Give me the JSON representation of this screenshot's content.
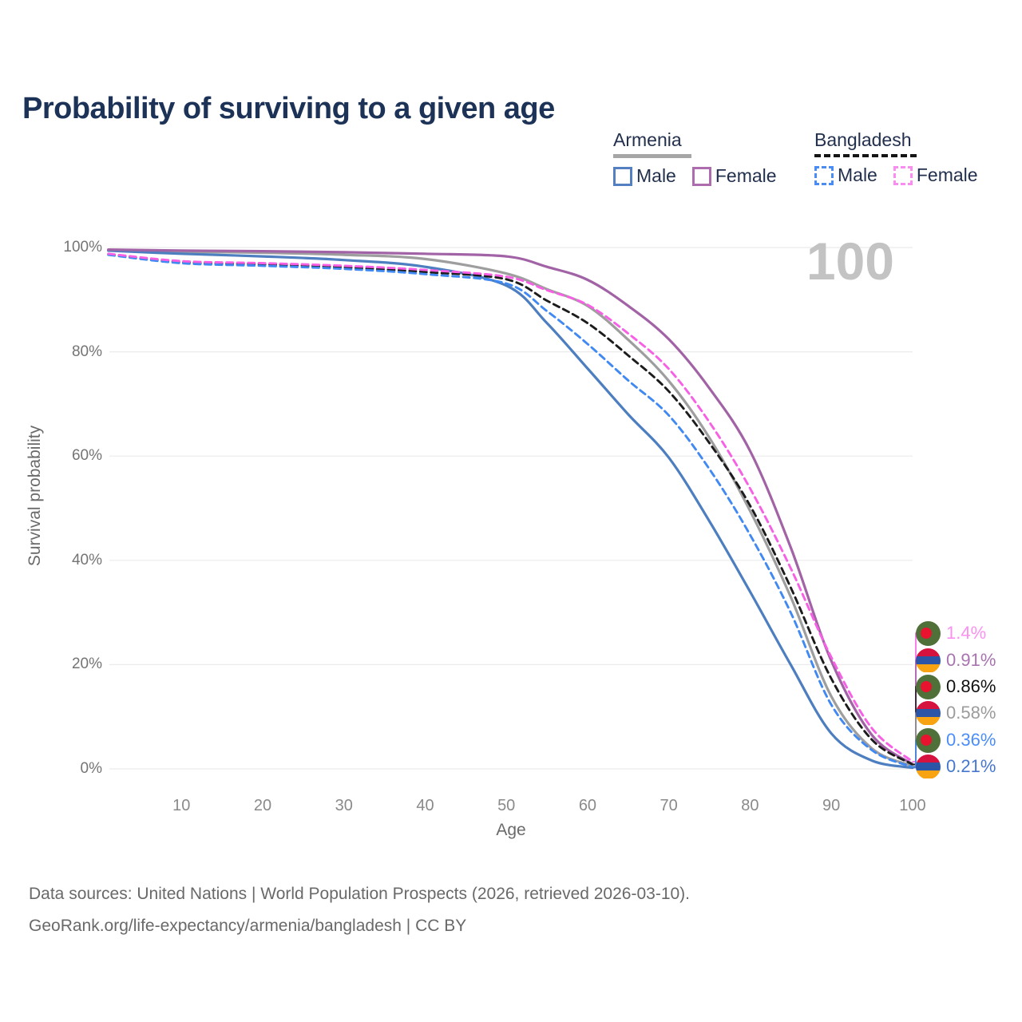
{
  "header": {
    "title": "Probability of surviving to a given age"
  },
  "legend": {
    "groups": [
      {
        "label": "Armenia",
        "line_style": "solid",
        "underline_color": "#a6a6a6",
        "items": [
          {
            "label": "Male",
            "color": "#5480c2",
            "dashed": false
          },
          {
            "label": "Female",
            "color": "#ad6cad",
            "dashed": false
          }
        ]
      },
      {
        "label": "Bangladesh",
        "line_style": "dashed",
        "underline_color": "#141414",
        "items": [
          {
            "label": "Male",
            "color": "#4a8cf5",
            "dashed": true
          },
          {
            "label": "Female",
            "color": "#fb8df1",
            "dashed": true
          }
        ]
      }
    ]
  },
  "chart_data": {
    "type": "line",
    "title": "Probability of surviving to a given age",
    "xlabel": "Age",
    "ylabel": "Survival probability",
    "xlim": [
      1,
      100
    ],
    "ylim": [
      0,
      100
    ],
    "grid": "horizontal",
    "legend_position": "top-right",
    "age_ticker": "100",
    "x_ticks": [
      10,
      20,
      30,
      40,
      50,
      60,
      70,
      80,
      90,
      100
    ],
    "y_ticks": [
      {
        "value": 0,
        "label": "0%"
      },
      {
        "value": 20,
        "label": "20%"
      },
      {
        "value": 40,
        "label": "40%"
      },
      {
        "value": 60,
        "label": "60%"
      },
      {
        "value": 80,
        "label": "80%"
      },
      {
        "value": 100,
        "label": "100%"
      }
    ],
    "x": [
      1,
      10,
      20,
      30,
      40,
      50,
      55,
      60,
      65,
      70,
      75,
      80,
      85,
      90,
      95,
      100
    ],
    "series": [
      {
        "id": "armenia-mean",
        "name": "Armenia (both sexes)",
        "country": "Armenia",
        "flag": "armenia",
        "color": "#9e9e9e",
        "label_color": "#9b9b9b",
        "dashed": false,
        "end_label": "0.58%",
        "values": [
          99.5,
          99.2,
          99.0,
          98.6,
          97.8,
          95.0,
          92.0,
          88.8,
          82.3,
          74.4,
          63.5,
          49.5,
          33.0,
          13.9,
          3.9,
          0.58
        ]
      },
      {
        "id": "armenia-male",
        "name": "Armenia Male",
        "country": "Armenia",
        "flag": "armenia",
        "color": "#4c7ec0",
        "label_color": "#4577cf",
        "dashed": false,
        "end_label": "0.21%",
        "values": [
          99.4,
          98.8,
          98.3,
          97.6,
          96.3,
          92.7,
          85.5,
          76.8,
          68.0,
          59.7,
          47.5,
          34.0,
          20.0,
          6.8,
          1.6,
          0.21
        ]
      },
      {
        "id": "armenia-female",
        "name": "Armenia Female",
        "country": "Armenia",
        "flag": "armenia",
        "color": "#a263a6",
        "label_color": "#a873b0",
        "dashed": false,
        "end_label": "0.91%",
        "values": [
          99.6,
          99.4,
          99.3,
          99.1,
          98.8,
          98.3,
          96.3,
          93.8,
          88.8,
          82.4,
          73.0,
          61.0,
          42.5,
          20.7,
          6.5,
          0.91
        ]
      },
      {
        "id": "bangladesh-mean",
        "name": "Bangladesh (both sexes)",
        "country": "Bangladesh",
        "flag": "bangladesh",
        "color": "#1c1c1c",
        "label_color": "#111111",
        "dashed": true,
        "end_label": "0.86%",
        "values": [
          98.7,
          97.2,
          96.8,
          96.2,
          95.3,
          93.9,
          89.8,
          85.5,
          79.3,
          72.4,
          62.5,
          50.5,
          34.8,
          17.3,
          5.6,
          0.86
        ]
      },
      {
        "id": "bangladesh-male",
        "name": "Bangladesh Male",
        "country": "Bangladesh",
        "flag": "bangladesh",
        "color": "#4189f2",
        "label_color": "#4b8df8",
        "dashed": true,
        "end_label": "0.36%",
        "values": [
          98.6,
          97.0,
          96.5,
          95.9,
          94.9,
          93.1,
          87.8,
          81.5,
          74.5,
          67.8,
          57.5,
          44.9,
          30.0,
          12.3,
          3.6,
          0.36
        ]
      },
      {
        "id": "bangladesh-female",
        "name": "Bangladesh Female",
        "country": "Bangladesh",
        "flag": "bangladesh",
        "color": "#f760e4",
        "label_color": "#fb90f0",
        "dashed": true,
        "end_label": "1.4%",
        "values": [
          98.8,
          97.4,
          97.0,
          96.5,
          95.7,
          94.4,
          91.8,
          89.0,
          83.5,
          76.7,
          66.5,
          53.8,
          38.5,
          21.4,
          7.8,
          1.4
        ]
      }
    ],
    "flag_colors": {
      "armenia": [
        "#d6123f",
        "#2b55a7",
        "#f7a312"
      ],
      "bangladesh": {
        "field": "#4f7039",
        "disc": "#e8132f"
      }
    }
  },
  "footer": {
    "line1": "Data sources: United Nations | World Population Prospects (2026, retrieved 2026-03-10).",
    "line2": "GeoRank.org/life-expectancy/armenia/bangladesh | CC BY"
  }
}
